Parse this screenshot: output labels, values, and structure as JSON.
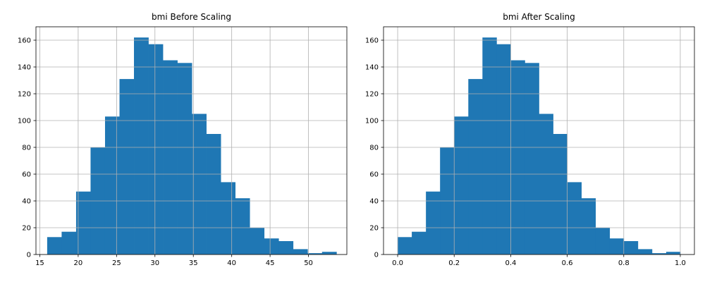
{
  "chart_data": [
    {
      "type": "bar",
      "title": "bmi Before Scaling",
      "xlabel": "",
      "ylabel": "",
      "bin_edges": [
        15.96,
        17.8445,
        19.729,
        21.6135,
        23.498,
        25.3825,
        27.267,
        29.1515,
        31.036,
        32.9205,
        34.805,
        36.6895,
        38.574,
        40.4585,
        42.343,
        44.2275,
        46.112,
        47.9965,
        49.881,
        51.7655,
        53.65
      ],
      "values": [
        13,
        17,
        47,
        80,
        103,
        131,
        162,
        157,
        145,
        143,
        105,
        90,
        54,
        42,
        20,
        12,
        10,
        4,
        1,
        2
      ],
      "xlim": [
        14.5,
        55.0
      ],
      "ylim": [
        0,
        170
      ],
      "x_ticks": [
        15,
        20,
        25,
        30,
        35,
        40,
        45,
        50
      ],
      "y_ticks": [
        0,
        20,
        40,
        60,
        80,
        100,
        120,
        140,
        160
      ],
      "x_tick_labels": [
        "15",
        "20",
        "25",
        "30",
        "35",
        "40",
        "45",
        "50"
      ],
      "y_tick_labels": [
        "0",
        "20",
        "40",
        "60",
        "80",
        "100",
        "120",
        "140",
        "160"
      ],
      "grid": true,
      "bar_color": "#1f77b4"
    },
    {
      "type": "bar",
      "title": "bmi After Scaling",
      "xlabel": "",
      "ylabel": "",
      "bin_edges": [
        0.0,
        0.05,
        0.1,
        0.15,
        0.2,
        0.25,
        0.3,
        0.35,
        0.4,
        0.45,
        0.5,
        0.55,
        0.6,
        0.65,
        0.7,
        0.75,
        0.8,
        0.85,
        0.9,
        0.95,
        1.0
      ],
      "values": [
        13,
        17,
        47,
        80,
        103,
        131,
        162,
        157,
        145,
        143,
        105,
        90,
        54,
        42,
        20,
        12,
        10,
        4,
        1,
        2
      ],
      "xlim": [
        -0.05,
        1.05
      ],
      "ylim": [
        0,
        170
      ],
      "x_ticks": [
        0.0,
        0.2,
        0.4,
        0.6,
        0.8,
        1.0
      ],
      "y_ticks": [
        0,
        20,
        40,
        60,
        80,
        100,
        120,
        140,
        160
      ],
      "x_tick_labels": [
        "0.0",
        "0.2",
        "0.4",
        "0.6",
        "0.8",
        "1.0"
      ],
      "y_tick_labels": [
        "0",
        "20",
        "40",
        "60",
        "80",
        "100",
        "120",
        "140",
        "160"
      ],
      "grid": true,
      "bar_color": "#1f77b4"
    }
  ]
}
